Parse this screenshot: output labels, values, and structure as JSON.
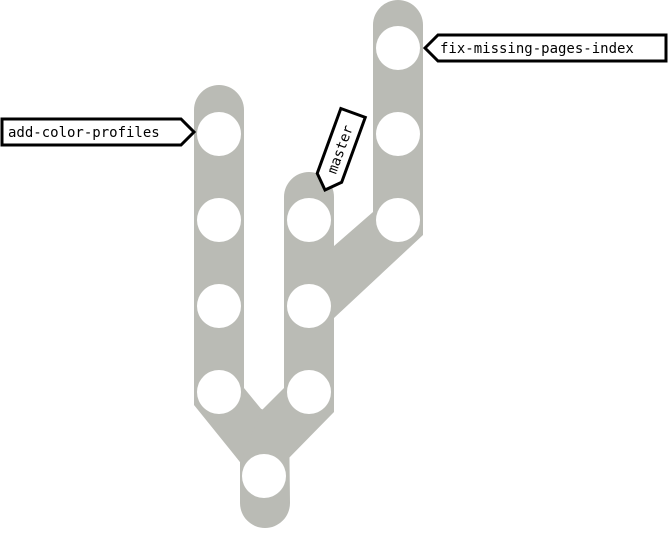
{
  "branches": {
    "add_color_profiles": {
      "label": "add-color-profiles"
    },
    "master": {
      "label": "master"
    },
    "fix_missing_pages_index": {
      "label": "fix-missing-pages-index"
    }
  },
  "colors": {
    "branch_fill": "#babbb5",
    "commit_fill": "#ffffff",
    "label_border": "#000000"
  }
}
